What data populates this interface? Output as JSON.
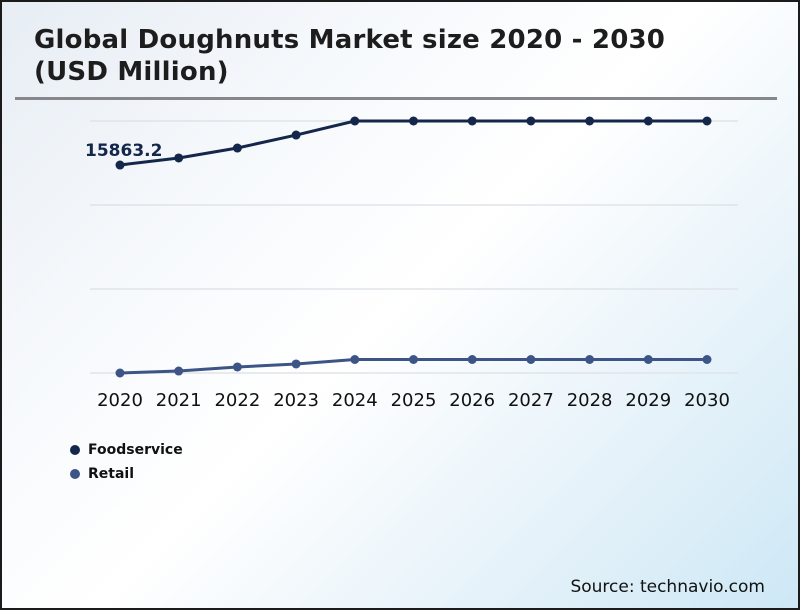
{
  "page": {
    "title_line1": "Global Doughnuts Market size 2020 - 2030",
    "title_line2": "(USD Million)",
    "source": "Source: technavio.com"
  },
  "legend": {
    "items": [
      {
        "label": "Foodservice",
        "color": "#14274b"
      },
      {
        "label": "Retail",
        "color": "#3c5586"
      }
    ]
  },
  "chart_data": {
    "type": "line",
    "title": "Global Doughnuts Market size 2020 - 2030 (USD Million)",
    "categories": [
      "2020",
      "2021",
      "2022",
      "2023",
      "2024",
      "2025",
      "2026",
      "2027",
      "2028",
      "2029",
      "2030"
    ],
    "series": [
      {
        "name": "Foodservice",
        "color": "#14274b",
        "values": [
          15863.2,
          16400,
          17160,
          18150,
          19220,
          19220,
          19220,
          19220,
          19220,
          19220,
          19220
        ],
        "labeled_point": {
          "category": "2020",
          "label": "15863.2"
        }
      },
      {
        "name": "Retail",
        "color": "#3c5586",
        "values": [
          0,
          150,
          460,
          690,
          1030,
          1030,
          1030,
          1030,
          1030,
          1030,
          1030
        ]
      }
    ],
    "values_note": "Only the 2020 Foodservice point carries a printed label (15863.2); all other values are estimated from point positions against the unlabeled gridlines.",
    "ylim": [
      0,
      19220
    ],
    "xlabel": "",
    "ylabel": "",
    "grid": true,
    "gridline_count": 4,
    "legend_position": "bottom-left"
  }
}
